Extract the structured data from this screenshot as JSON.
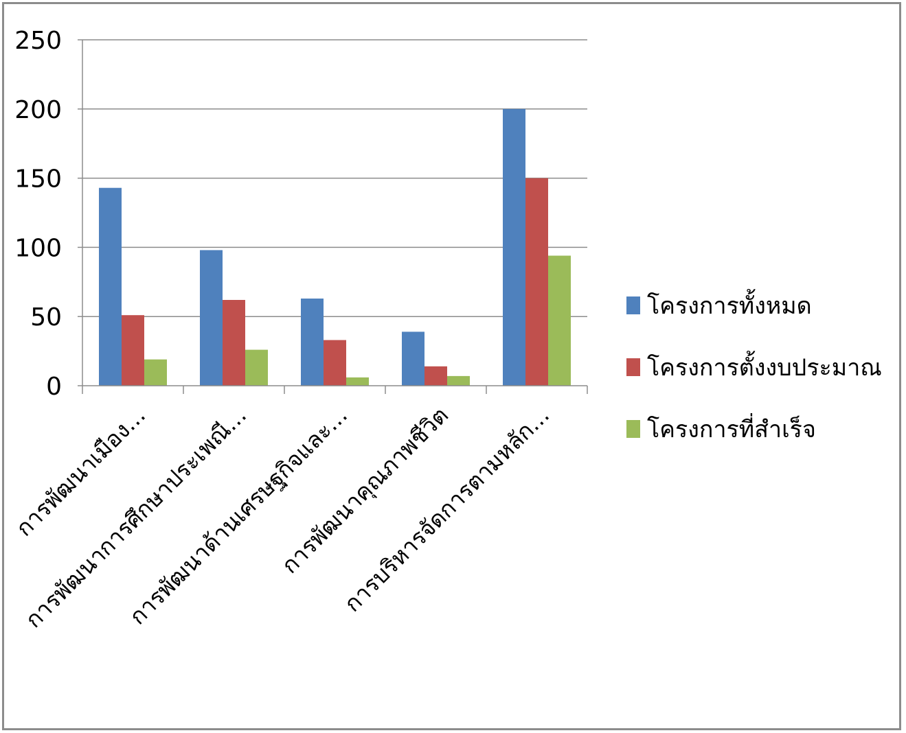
{
  "chart_data": {
    "type": "bar",
    "title": "",
    "xlabel": "",
    "ylabel": "",
    "ylim": [
      0,
      250
    ],
    "yticks": [
      0,
      50,
      100,
      150,
      200,
      250
    ],
    "grid": true,
    "legend_position": "right",
    "categories": [
      "การพัฒนาเมือง...",
      "การพัฒนาการศึกษาประเพณี...",
      "การพัฒนาด้านเศรษฐกิจและ...",
      "การพัฒนาคุณภาพชีวิต",
      "การบริหารจัดการตามหลัก..."
    ],
    "series": [
      {
        "name": "โครงการทั้งหมด",
        "color": "#4f81bd",
        "values": [
          143,
          98,
          63,
          39,
          200
        ]
      },
      {
        "name": "โครงการตั้งงบประมาณ",
        "color": "#c0504d",
        "values": [
          51,
          62,
          33,
          14,
          150
        ]
      },
      {
        "name": "โครงการที่สำเร็จ",
        "color": "#9bbb59",
        "values": [
          19,
          26,
          6,
          7,
          94
        ]
      }
    ]
  }
}
